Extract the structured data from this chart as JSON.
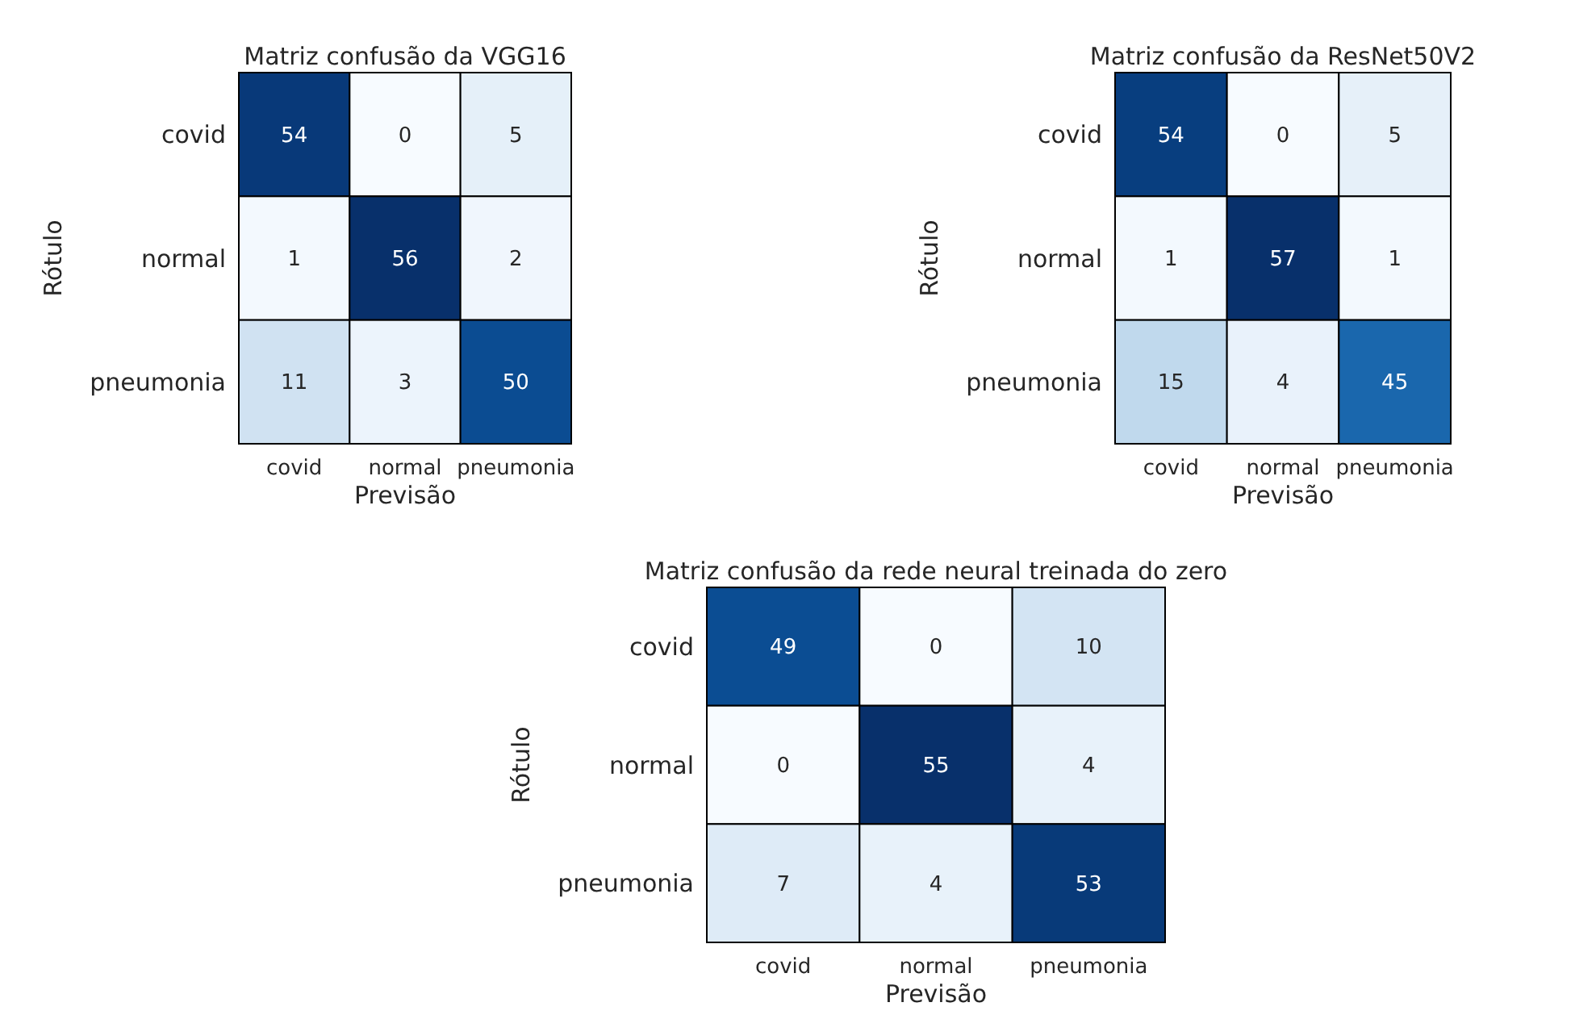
{
  "chart_data": [
    {
      "type": "heatmap",
      "title": "Matriz confusão da VGG16",
      "xlabel": "Previsão",
      "ylabel": "Rótulo",
      "categories": [
        "covid",
        "normal",
        "pneumonia"
      ],
      "y_categories": [
        "covid",
        "normal",
        "pneumonia"
      ],
      "cells": [
        [
          54,
          0,
          5
        ],
        [
          1,
          56,
          2
        ],
        [
          11,
          3,
          50
        ]
      ],
      "data_labels": true
    },
    {
      "type": "heatmap",
      "title": "Matriz confusão da ResNet50V2",
      "xlabel": "Previsão",
      "ylabel": "Rótulo",
      "categories": [
        "covid",
        "normal",
        "pneumonia"
      ],
      "y_categories": [
        "covid",
        "normal",
        "pneumonia"
      ],
      "cells": [
        [
          54,
          0,
          5
        ],
        [
          1,
          57,
          1
        ],
        [
          15,
          4,
          45
        ]
      ],
      "data_labels": true
    },
    {
      "type": "heatmap",
      "title": "Matriz confusão da rede neural treinada do zero",
      "xlabel": "Previsão",
      "ylabel": "Rótulo",
      "categories": [
        "covid",
        "normal",
        "pneumonia"
      ],
      "y_categories": [
        "covid",
        "normal",
        "pneumonia"
      ],
      "cells": [
        [
          49,
          0,
          10
        ],
        [
          0,
          55,
          4
        ],
        [
          7,
          4,
          53
        ]
      ],
      "data_labels": true
    }
  ]
}
